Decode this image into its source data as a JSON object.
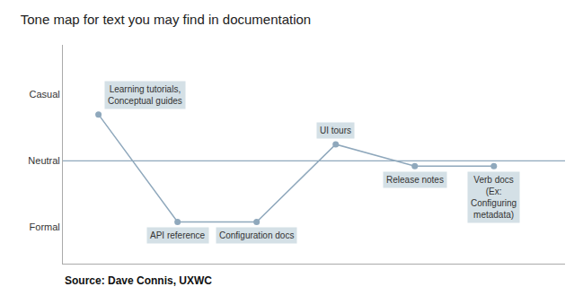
{
  "chart_data": {
    "type": "line",
    "title": "Tone map for text you may find in documentation",
    "source": "Source: Dave Connis, UXWC",
    "x": [
      1,
      2,
      3,
      4,
      5,
      6
    ],
    "values": [
      1.7,
      0.08,
      0.08,
      1.25,
      0.92,
      0.92
    ],
    "point_labels": [
      "Learning tutorials,\nConceptual guides",
      "API reference",
      "Configuration docs",
      "UI tours",
      "Release notes",
      "Verb docs\n(Ex:\nConfiguring\nmetadata)"
    ],
    "hline": 1.0,
    "xlim": [
      0.55,
      6.9
    ],
    "ylim": [
      -0.55,
      2.75
    ],
    "yticks": [
      {
        "value": 2,
        "label": "Casual"
      },
      {
        "value": 1,
        "label": "Neutral"
      },
      {
        "value": 0,
        "label": "Formal"
      }
    ],
    "tick_labels": "y",
    "grid": false,
    "marker": "circle",
    "color": "#8fa8bc",
    "box_color": "#b8ccd6"
  }
}
